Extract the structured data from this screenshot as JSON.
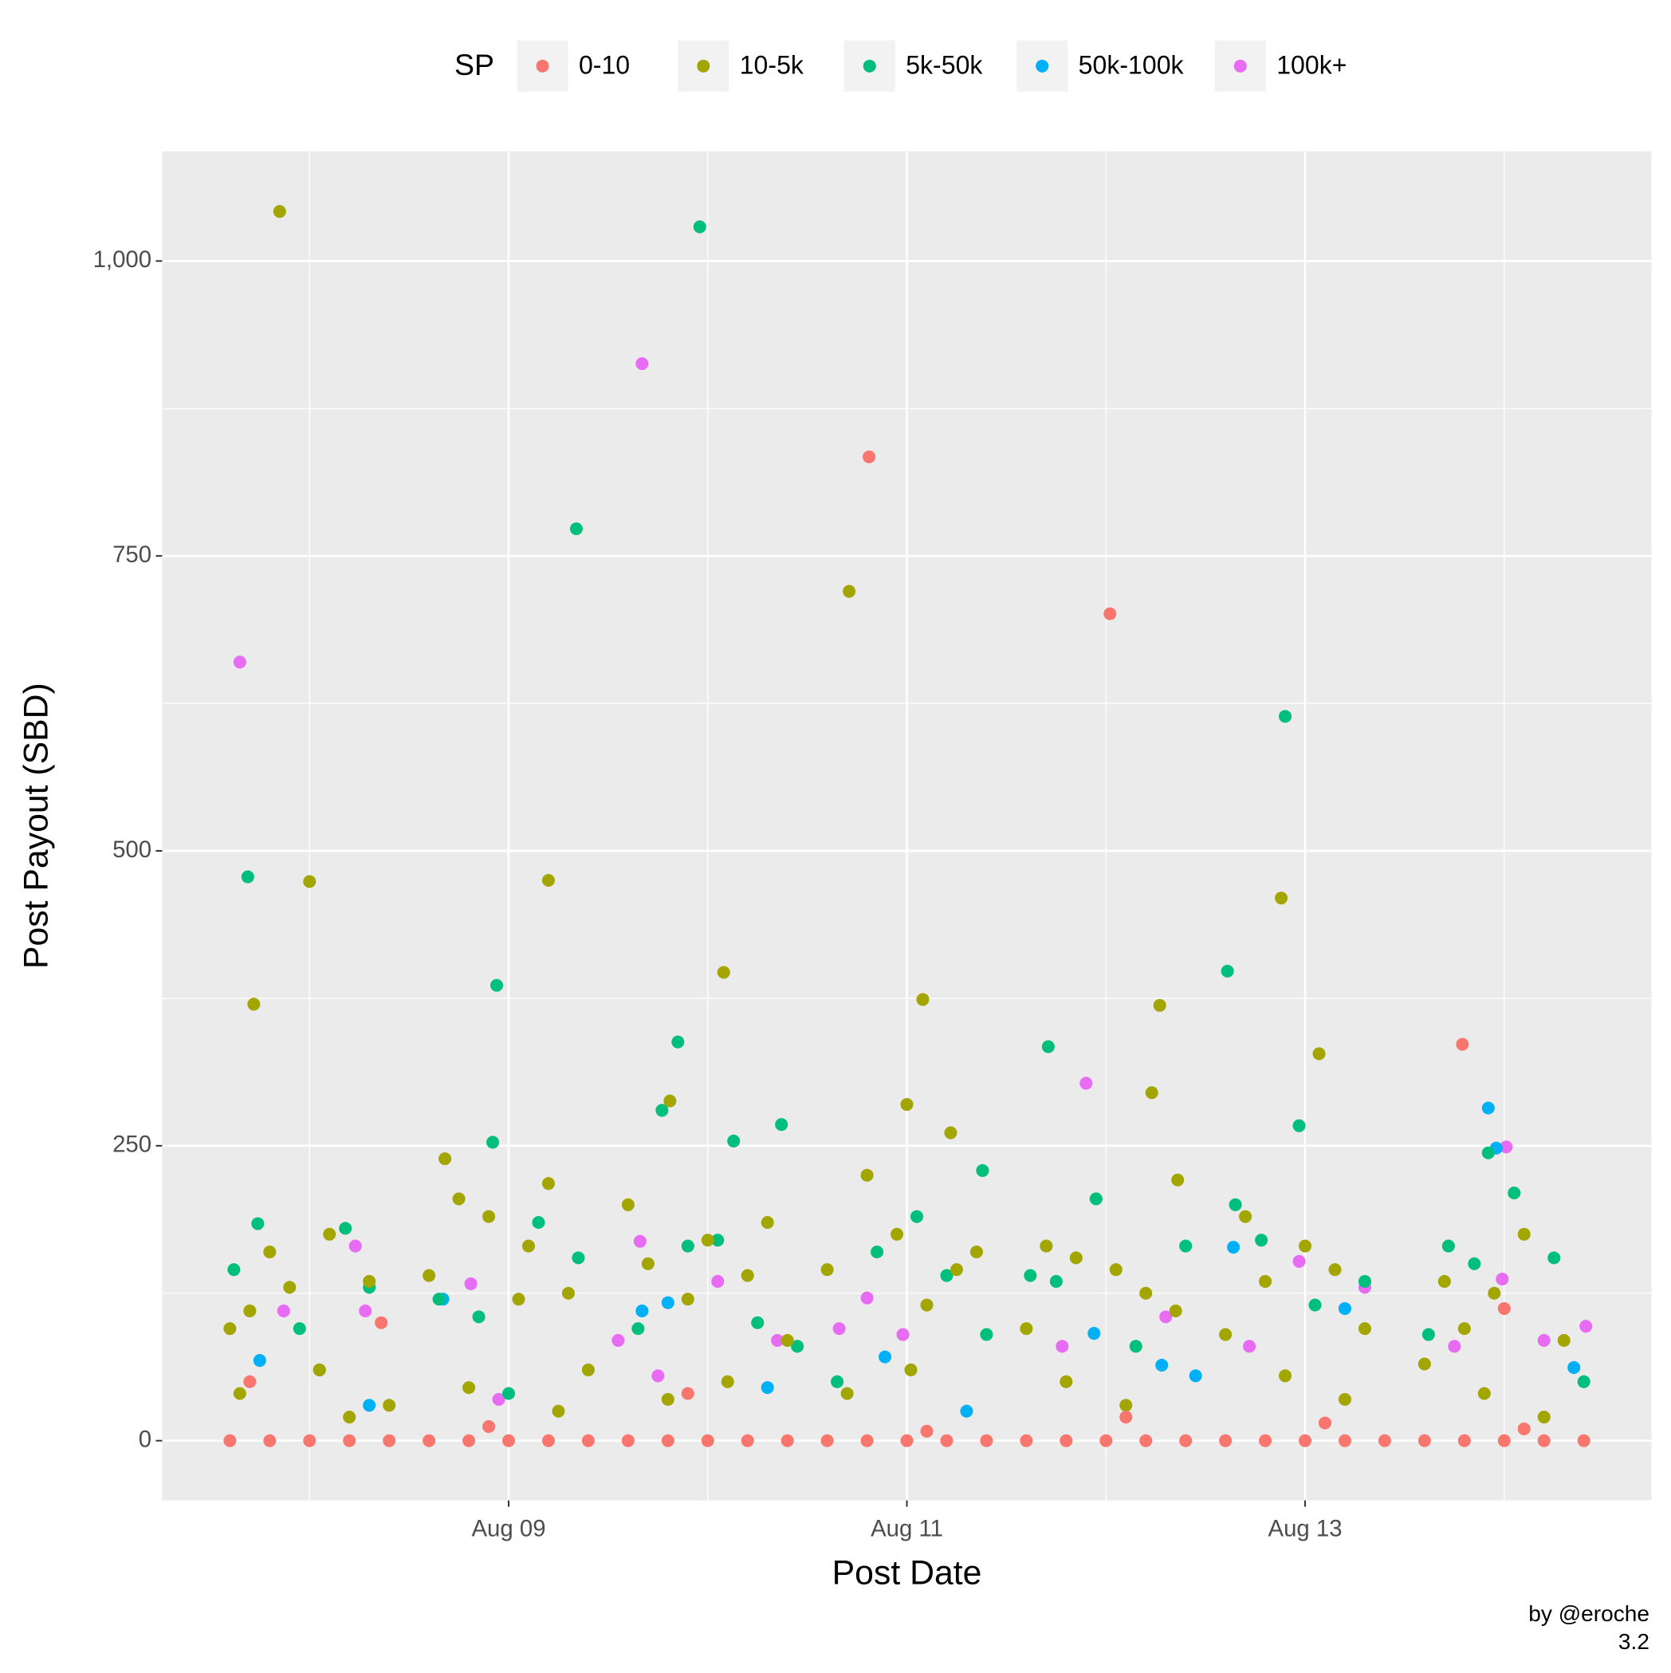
{
  "chart_data": {
    "type": "scatter",
    "xlabel": "Post Date",
    "ylabel": "Post Payout (SBD)",
    "legend_title": "SP",
    "legend_position": "top",
    "caption": [
      "by @eroche",
      "3.2"
    ],
    "grid": true,
    "xlim": [
      7.26,
      14.74
    ],
    "ylim": [
      -50.6,
      1093
    ],
    "xticks": [
      {
        "value": 9,
        "label": "Aug 09"
      },
      {
        "value": 11,
        "label": "Aug 11"
      },
      {
        "value": 13,
        "label": "Aug 13"
      }
    ],
    "yticks": [
      0,
      250,
      500,
      750,
      {
        "value": 1000,
        "label": "1,000"
      }
    ],
    "series": [
      {
        "name": "0-10",
        "color": "#F8766D",
        "x": [
          10.81,
          12.02,
          13.79,
          14.0,
          8.36,
          7.6,
          7.8,
          8.0,
          8.2,
          8.4,
          8.6,
          8.8,
          9.0,
          9.2,
          9.4,
          9.6,
          9.8,
          10.0,
          10.2,
          10.4,
          10.6,
          10.8,
          11.0,
          11.2,
          11.4,
          11.6,
          11.8,
          12.0,
          12.2,
          12.4,
          12.6,
          12.8,
          13.0,
          13.2,
          13.4,
          13.6,
          13.8,
          14.0,
          14.2,
          14.4,
          7.7,
          8.9,
          9.9,
          11.1,
          12.1,
          13.1,
          14.1
        ],
        "values": [
          834,
          701,
          336,
          112,
          100,
          0,
          0,
          0,
          0,
          0,
          0,
          0,
          0,
          0,
          0,
          0,
          0,
          0,
          0,
          0,
          0,
          0,
          0,
          0,
          0,
          0,
          0,
          0,
          0,
          0,
          0,
          0,
          0,
          0,
          0,
          0,
          0,
          0,
          0,
          0,
          50,
          12,
          40,
          8,
          20,
          15,
          10
        ]
      },
      {
        "name": "10-5k",
        "color": "#A3A500",
        "x": [
          7.85,
          10.71,
          8.0,
          9.2,
          7.72,
          10.08,
          11.08,
          12.27,
          12.88,
          13.07,
          9.81,
          11.0,
          12.23,
          8.68,
          11.22,
          9.2,
          12.36,
          7.6,
          7.7,
          7.8,
          7.9,
          8.05,
          8.1,
          8.3,
          8.4,
          7.65,
          8.2,
          8.6,
          8.75,
          8.9,
          9.05,
          9.1,
          9.3,
          9.4,
          8.8,
          9.25,
          9.6,
          9.7,
          9.9,
          10.0,
          10.2,
          10.3,
          10.4,
          9.8,
          10.1,
          10.6,
          10.8,
          10.95,
          11.1,
          11.25,
          11.35,
          10.7,
          11.02,
          11.6,
          11.7,
          11.85,
          12.05,
          12.2,
          12.35,
          11.8,
          12.1,
          12.6,
          12.7,
          12.8,
          13.0,
          13.15,
          13.3,
          12.9,
          13.2,
          13.6,
          13.7,
          13.8,
          13.95,
          14.1,
          14.3,
          13.9,
          14.2
        ],
        "values": [
          1042,
          720,
          474,
          475,
          370,
          397,
          374,
          369,
          460,
          328,
          288,
          285,
          295,
          239,
          261,
          218,
          221,
          95,
          110,
          160,
          130,
          60,
          175,
          135,
          30,
          40,
          20,
          140,
          205,
          190,
          120,
          165,
          125,
          60,
          45,
          25,
          200,
          150,
          120,
          170,
          140,
          185,
          85,
          35,
          50,
          145,
          225,
          175,
          115,
          145,
          160,
          40,
          60,
          95,
          165,
          155,
          145,
          125,
          110,
          50,
          30,
          90,
          190,
          135,
          165,
          145,
          95,
          55,
          35,
          65,
          135,
          95,
          125,
          175,
          85,
          40,
          20
        ]
      },
      {
        "name": "5k-50k",
        "color": "#00BF7D",
        "x": [
          9.96,
          9.34,
          7.69,
          8.94,
          12.9,
          12.61,
          11.71,
          9.85,
          9.77,
          10.13,
          10.37,
          8.92,
          12.97,
          13.92,
          11.38,
          7.74,
          7.62,
          7.95,
          8.18,
          8.3,
          8.05,
          8.65,
          8.85,
          9.15,
          9.35,
          9.0,
          9.65,
          9.9,
          10.05,
          10.25,
          10.45,
          10.65,
          10.85,
          11.05,
          11.2,
          11.4,
          11.62,
          11.75,
          11.95,
          12.15,
          12.4,
          12.65,
          12.78,
          13.05,
          13.3,
          13.62,
          13.72,
          13.85,
          14.05,
          14.25,
          14.4
        ],
        "values": [
          1029,
          773,
          478,
          386,
          614,
          398,
          334,
          338,
          280,
          254,
          268,
          253,
          267,
          244,
          229,
          184,
          145,
          95,
          180,
          130,
          60,
          120,
          105,
          185,
          155,
          40,
          95,
          165,
          170,
          100,
          80,
          50,
          160,
          190,
          140,
          90,
          140,
          135,
          205,
          80,
          165,
          200,
          170,
          115,
          135,
          90,
          165,
          150,
          210,
          155,
          50
        ]
      },
      {
        "name": "50k-100k",
        "color": "#00B0F6",
        "x": [
          13.92,
          13.96,
          11.94,
          12.64,
          9.8,
          9.67,
          8.67,
          13.2,
          12.28,
          7.75,
          10.89,
          8.3,
          10.3,
          11.3,
          12.45,
          14.35
        ],
        "values": [
          282,
          248,
          91,
          164,
          117,
          110,
          120,
          112,
          64,
          68,
          71,
          30,
          45,
          25,
          55,
          62
        ]
      },
      {
        "name": "100k+",
        "color": "#E76BF3",
        "x": [
          9.67,
          7.65,
          11.9,
          14.01,
          9.66,
          8.23,
          10.8,
          13.99,
          12.97,
          14.41,
          8.81,
          10.05,
          7.87,
          8.28,
          9.55,
          10.35,
          10.66,
          10.98,
          11.78,
          12.3,
          12.72,
          13.3,
          13.75,
          14.2,
          8.95,
          9.75
        ],
        "values": [
          913,
          660,
          303,
          249,
          169,
          165,
          121,
          137,
          152,
          97,
          133,
          135,
          110,
          110,
          85,
          85,
          95,
          90,
          80,
          105,
          80,
          130,
          80,
          85,
          35,
          55
        ]
      }
    ]
  }
}
